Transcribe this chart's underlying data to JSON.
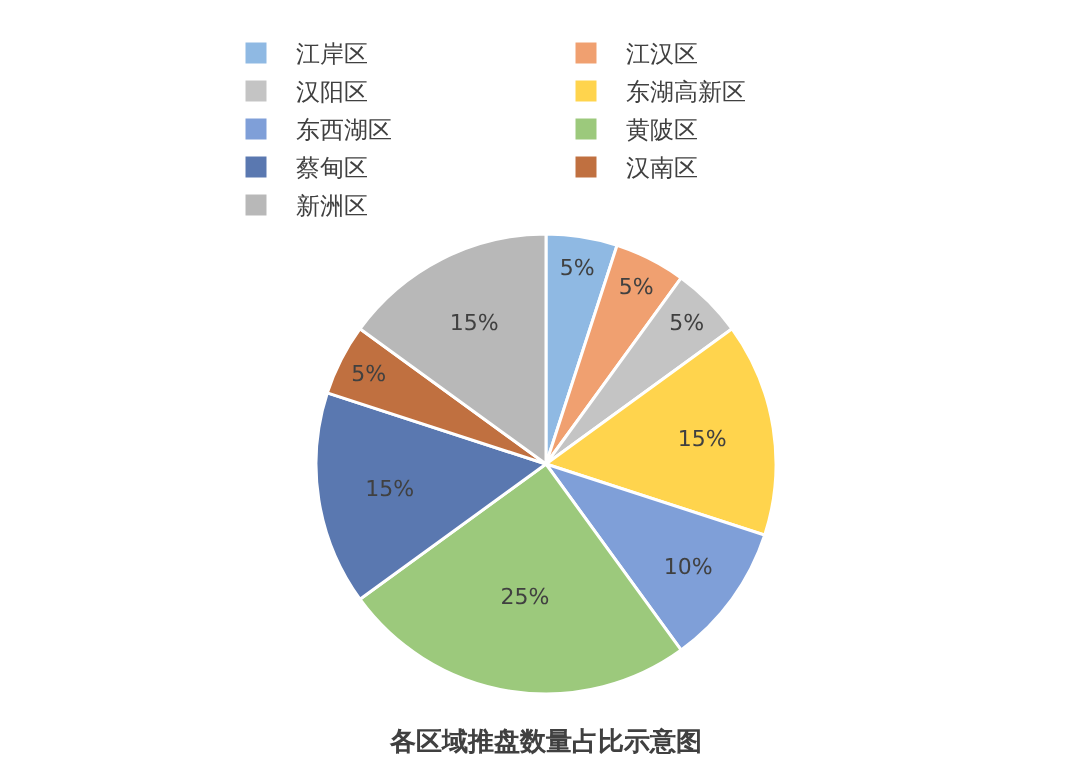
{
  "chart_data": {
    "type": "pie",
    "title": "各区域推盘数量占比示意图",
    "categories": [
      "江岸区",
      "江汉区",
      "汉阳区",
      "东湖高新区",
      "东西湖区",
      "黄陂区",
      "蔡甸区",
      "汉南区",
      "新洲区"
    ],
    "values": [
      5,
      5,
      5,
      15,
      10,
      25,
      15,
      5,
      15
    ],
    "value_labels": [
      "5%",
      "5%",
      "5%",
      "15%",
      "10%",
      "25%",
      "15%",
      "5%",
      "15%"
    ],
    "colors": [
      "#8fb9e3",
      "#f0a070",
      "#c4c4c4",
      "#ffd44d",
      "#7f9fd8",
      "#9cc97c",
      "#5a78b0",
      "#c07040",
      "#b8b8b8"
    ],
    "legend": "top"
  }
}
